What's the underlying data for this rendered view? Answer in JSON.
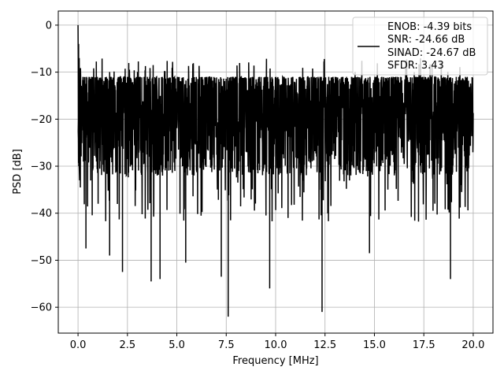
{
  "chart_data": {
    "type": "line",
    "title": "",
    "xlabel": "Frequency [MHz]",
    "ylabel": "PSD [dB]",
    "xlim": [
      -1.0,
      21.0
    ],
    "ylim": [
      -65.5,
      3.0
    ],
    "x_ticks": [
      0.0,
      2.5,
      5.0,
      7.5,
      10.0,
      12.5,
      15.0,
      17.5,
      20.0
    ],
    "x_tick_labels": [
      "0.0",
      "2.5",
      "5.0",
      "7.5",
      "10.0",
      "12.5",
      "15.0",
      "17.5",
      "20.0"
    ],
    "y_ticks": [
      0,
      -10,
      -20,
      -30,
      -40,
      -50,
      -60
    ],
    "y_tick_labels": [
      "0",
      "−10",
      "−20",
      "−30",
      "−40",
      "−50",
      "−60"
    ],
    "grid": true,
    "legend_position": "top-right",
    "series": [
      {
        "name": "",
        "color": "#000000",
        "x_range": [
          0.0,
          20.0
        ],
        "peak": {
          "x": 0.0,
          "y": 0.0
        },
        "upper_envelope_db": [
          -7,
          -11
        ],
        "typical_range_db": [
          -32,
          -11
        ],
        "notable_minima": [
          {
            "x": 0.4,
            "y": -47.5
          },
          {
            "x": 1.6,
            "y": -49.0
          },
          {
            "x": 2.25,
            "y": -52.5
          },
          {
            "x": 3.7,
            "y": -54.5
          },
          {
            "x": 4.15,
            "y": -54.0
          },
          {
            "x": 5.45,
            "y": -50.5
          },
          {
            "x": 7.25,
            "y": -53.5
          },
          {
            "x": 7.6,
            "y": -62.0
          },
          {
            "x": 9.7,
            "y": -56.0
          },
          {
            "x": 12.35,
            "y": -61.0
          },
          {
            "x": 14.75,
            "y": -48.5
          },
          {
            "x": 18.85,
            "y": -54.0
          }
        ]
      }
    ],
    "legend_lines": [
      "ENOB: -4.39 bits",
      "SNR: -24.66 dB",
      "SINAD: -24.67 dB",
      "SFDR: 3.43"
    ]
  }
}
